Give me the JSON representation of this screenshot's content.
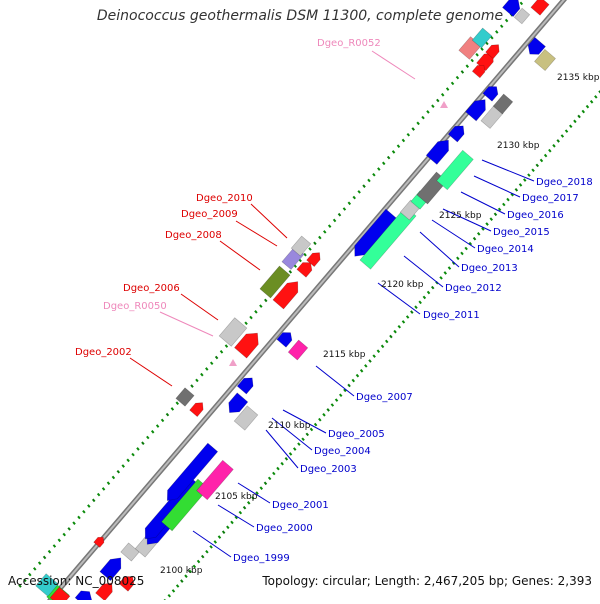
{
  "title": "Deinococcus geothermalis DSM 11300, complete genome",
  "footer": {
    "accession": "Accession: NC_008025",
    "summary": "Topology: circular; Length: 2,467,205 bp; Genes: 2,393"
  },
  "scale_labels": [
    "2100 kbp",
    "2105 kbp",
    "2110 kbp",
    "2115 kbp",
    "2120 kbp",
    "2125 kbp",
    "2130 kbp",
    "2135 kbp"
  ],
  "colors": {
    "backbone": "#8a8a8a",
    "blue_gene": "#0000ee",
    "green_gene": "#33dd33",
    "magenta_gene": "#ff22aa",
    "seafoam_gene": "#33ff99",
    "red_gene": "#ff1111",
    "olive_gene": "#6b8e23",
    "label_blue": "#0000cc",
    "label_red": "#dd0000",
    "label_pink": "#ee88bb"
  },
  "labels_right": [
    {
      "text": "Dgeo_1999"
    },
    {
      "text": "Dgeo_2000"
    },
    {
      "text": "Dgeo_2001"
    },
    {
      "text": "Dgeo_2003"
    },
    {
      "text": "Dgeo_2004"
    },
    {
      "text": "Dgeo_2005"
    },
    {
      "text": "Dgeo_2007"
    },
    {
      "text": "Dgeo_2011"
    },
    {
      "text": "Dgeo_2012"
    },
    {
      "text": "Dgeo_2013"
    },
    {
      "text": "Dgeo_2014"
    },
    {
      "text": "Dgeo_2015"
    },
    {
      "text": "Dgeo_2016"
    },
    {
      "text": "Dgeo_2017"
    },
    {
      "text": "Dgeo_2018"
    }
  ],
  "labels_left": [
    {
      "text": "Dgeo_2002",
      "kind": "red"
    },
    {
      "text": "Dgeo_R0050",
      "kind": "pink"
    },
    {
      "text": "Dgeo_2006",
      "kind": "red"
    },
    {
      "text": "Dgeo_2008",
      "kind": "red"
    },
    {
      "text": "Dgeo_2009",
      "kind": "red"
    },
    {
      "text": "Dgeo_2010",
      "kind": "red"
    },
    {
      "text": "Dgeo_R0052",
      "kind": "pink"
    }
  ]
}
